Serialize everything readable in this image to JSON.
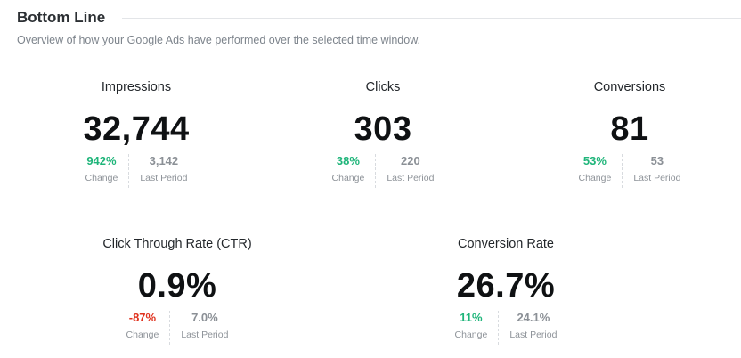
{
  "section": {
    "title": "Bottom Line",
    "subtitle": "Overview of how your Google Ads have performed over the selected time window."
  },
  "metrics": {
    "impressions": {
      "label": "Impressions",
      "value": "32,744",
      "change": "942%",
      "change_caption": "Change",
      "last_period": "3,142",
      "last_period_caption": "Last Period",
      "change_color": "#1fb57a"
    },
    "clicks": {
      "label": "Clicks",
      "value": "303",
      "change": "38%",
      "change_caption": "Change",
      "last_period": "220",
      "last_period_caption": "Last Period",
      "change_color": "#1fb57a"
    },
    "conversions": {
      "label": "Conversions",
      "value": "81",
      "change": "53%",
      "change_caption": "Change",
      "last_period": "53",
      "last_period_caption": "Last Period",
      "change_color": "#1fb57a"
    },
    "ctr": {
      "label": "Click Through Rate (CTR)",
      "value": "0.9%",
      "change": "-87%",
      "change_caption": "Change",
      "last_period": "7.0%",
      "last_period_caption": "Last Period",
      "change_color": "#e0321e"
    },
    "conversion_rate": {
      "label": "Conversion Rate",
      "value": "26.7%",
      "change": "11%",
      "change_caption": "Change",
      "last_period": "24.1%",
      "last_period_caption": "Last Period",
      "change_color": "#1fb57a"
    }
  }
}
